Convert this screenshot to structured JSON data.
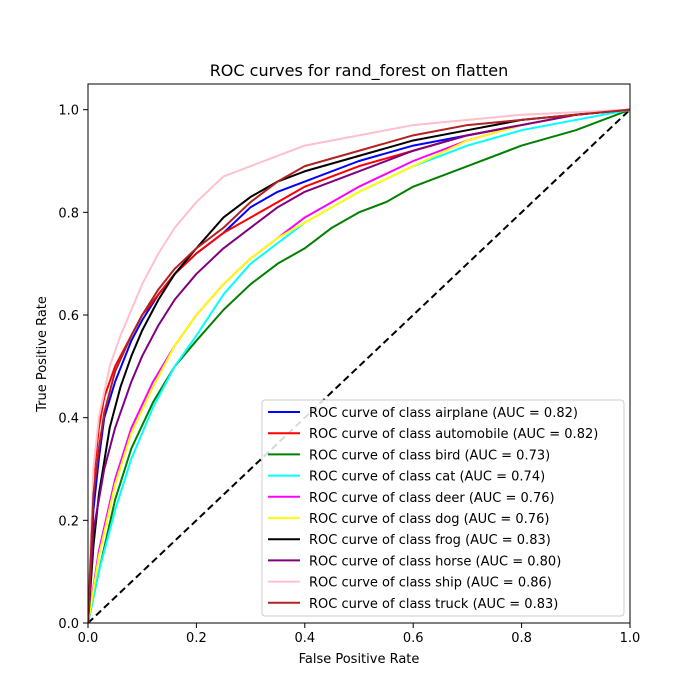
{
  "chart_data": {
    "type": "line",
    "title": "ROC curves for rand_forest on flatten",
    "xlabel": "False Positive Rate",
    "ylabel": "True Positive Rate",
    "xlim": [
      0.0,
      1.0
    ],
    "ylim": [
      0.0,
      1.05
    ],
    "xticks": [
      "0.0",
      "0.2",
      "0.4",
      "0.6",
      "0.8",
      "1.0"
    ],
    "yticks": [
      "0.0",
      "0.2",
      "0.4",
      "0.6",
      "0.8",
      "1.0"
    ],
    "grid": false,
    "legend_position": "lower-right",
    "chance_line": {
      "x": [
        0,
        1
      ],
      "y": [
        0,
        1
      ],
      "color": "#000000",
      "style": "dashed"
    },
    "series": [
      {
        "name": "ROC curve of class airplane (AUC = 0.82)",
        "color": "#0000ff",
        "x": [
          0,
          0.01,
          0.02,
          0.03,
          0.05,
          0.08,
          0.1,
          0.13,
          0.16,
          0.2,
          0.25,
          0.3,
          0.35,
          0.4,
          0.5,
          0.6,
          0.7,
          0.8,
          0.9,
          1.0
        ],
        "y": [
          0,
          0.22,
          0.32,
          0.4,
          0.47,
          0.55,
          0.59,
          0.64,
          0.68,
          0.72,
          0.76,
          0.81,
          0.84,
          0.86,
          0.9,
          0.93,
          0.95,
          0.97,
          0.99,
          1.0
        ]
      },
      {
        "name": "ROC curve of class automobile (AUC = 0.82)",
        "color": "#ff0000",
        "x": [
          0,
          0.01,
          0.02,
          0.03,
          0.05,
          0.08,
          0.1,
          0.13,
          0.16,
          0.2,
          0.25,
          0.3,
          0.35,
          0.4,
          0.5,
          0.6,
          0.7,
          0.8,
          0.9,
          1.0
        ],
        "y": [
          0,
          0.28,
          0.38,
          0.44,
          0.5,
          0.56,
          0.6,
          0.64,
          0.68,
          0.72,
          0.76,
          0.79,
          0.82,
          0.85,
          0.89,
          0.92,
          0.95,
          0.97,
          0.99,
          1.0
        ]
      },
      {
        "name": "ROC curve of class bird (AUC = 0.73)",
        "color": "#008000",
        "x": [
          0,
          0.02,
          0.05,
          0.08,
          0.12,
          0.16,
          0.2,
          0.25,
          0.3,
          0.35,
          0.4,
          0.45,
          0.5,
          0.55,
          0.6,
          0.7,
          0.8,
          0.9,
          1.0
        ],
        "y": [
          0,
          0.1,
          0.24,
          0.34,
          0.43,
          0.5,
          0.55,
          0.61,
          0.66,
          0.7,
          0.73,
          0.77,
          0.8,
          0.82,
          0.85,
          0.89,
          0.93,
          0.96,
          1.0
        ]
      },
      {
        "name": "ROC curve of class cat (AUC = 0.74)",
        "color": "#00ffff",
        "x": [
          0,
          0.02,
          0.05,
          0.08,
          0.12,
          0.16,
          0.2,
          0.25,
          0.3,
          0.35,
          0.4,
          0.45,
          0.5,
          0.6,
          0.7,
          0.8,
          0.9,
          1.0
        ],
        "y": [
          0,
          0.1,
          0.22,
          0.32,
          0.42,
          0.5,
          0.56,
          0.64,
          0.7,
          0.74,
          0.78,
          0.81,
          0.84,
          0.89,
          0.93,
          0.96,
          0.98,
          1.0
        ]
      },
      {
        "name": "ROC curve of class deer (AUC = 0.76)",
        "color": "#ff00ff",
        "x": [
          0,
          0.02,
          0.05,
          0.08,
          0.12,
          0.16,
          0.2,
          0.25,
          0.3,
          0.35,
          0.4,
          0.45,
          0.5,
          0.6,
          0.7,
          0.8,
          0.9,
          1.0
        ],
        "y": [
          0,
          0.14,
          0.28,
          0.38,
          0.47,
          0.54,
          0.6,
          0.66,
          0.71,
          0.75,
          0.79,
          0.82,
          0.85,
          0.9,
          0.94,
          0.97,
          0.99,
          1.0
        ]
      },
      {
        "name": "ROC curve of class dog (AUC = 0.76)",
        "color": "#ffff00",
        "x": [
          0,
          0.02,
          0.05,
          0.08,
          0.12,
          0.16,
          0.2,
          0.25,
          0.3,
          0.35,
          0.4,
          0.45,
          0.5,
          0.6,
          0.7,
          0.8,
          0.9,
          1.0
        ],
        "y": [
          0,
          0.13,
          0.27,
          0.37,
          0.46,
          0.54,
          0.6,
          0.66,
          0.71,
          0.75,
          0.78,
          0.81,
          0.84,
          0.89,
          0.94,
          0.97,
          0.99,
          1.0
        ]
      },
      {
        "name": "ROC curve of class frog (AUC = 0.83)",
        "color": "#000000",
        "x": [
          0,
          0.01,
          0.02,
          0.04,
          0.06,
          0.08,
          0.1,
          0.13,
          0.16,
          0.2,
          0.25,
          0.3,
          0.35,
          0.4,
          0.5,
          0.6,
          0.7,
          0.8,
          0.9,
          1.0
        ],
        "y": [
          0,
          0.15,
          0.25,
          0.38,
          0.46,
          0.52,
          0.57,
          0.63,
          0.68,
          0.73,
          0.79,
          0.83,
          0.86,
          0.88,
          0.91,
          0.94,
          0.96,
          0.98,
          0.99,
          1.0
        ]
      },
      {
        "name": "ROC curve of class horse (AUC = 0.80)",
        "color": "#800080",
        "x": [
          0,
          0.01,
          0.03,
          0.05,
          0.08,
          0.1,
          0.13,
          0.16,
          0.2,
          0.25,
          0.3,
          0.35,
          0.4,
          0.5,
          0.6,
          0.7,
          0.8,
          0.9,
          1.0
        ],
        "y": [
          0,
          0.18,
          0.3,
          0.38,
          0.47,
          0.52,
          0.58,
          0.63,
          0.68,
          0.73,
          0.77,
          0.81,
          0.84,
          0.88,
          0.92,
          0.95,
          0.97,
          0.99,
          1.0
        ]
      },
      {
        "name": "ROC curve of class ship (AUC = 0.86)",
        "color": "#ffc0cb",
        "x": [
          0,
          0.01,
          0.02,
          0.04,
          0.06,
          0.08,
          0.1,
          0.13,
          0.16,
          0.2,
          0.25,
          0.3,
          0.35,
          0.4,
          0.5,
          0.6,
          0.7,
          0.8,
          0.9,
          1.0
        ],
        "y": [
          0,
          0.3,
          0.4,
          0.5,
          0.56,
          0.61,
          0.66,
          0.72,
          0.77,
          0.82,
          0.87,
          0.89,
          0.91,
          0.93,
          0.95,
          0.97,
          0.98,
          0.99,
          0.995,
          1.0
        ]
      },
      {
        "name": "ROC curve of class truck (AUC = 0.83)",
        "color": "#b22222",
        "x": [
          0,
          0.01,
          0.02,
          0.03,
          0.05,
          0.08,
          0.1,
          0.13,
          0.16,
          0.2,
          0.25,
          0.3,
          0.35,
          0.4,
          0.5,
          0.6,
          0.7,
          0.8,
          0.9,
          1.0
        ],
        "y": [
          0,
          0.25,
          0.34,
          0.41,
          0.49,
          0.56,
          0.6,
          0.65,
          0.69,
          0.73,
          0.77,
          0.82,
          0.86,
          0.89,
          0.92,
          0.95,
          0.97,
          0.98,
          0.99,
          1.0
        ]
      }
    ]
  }
}
